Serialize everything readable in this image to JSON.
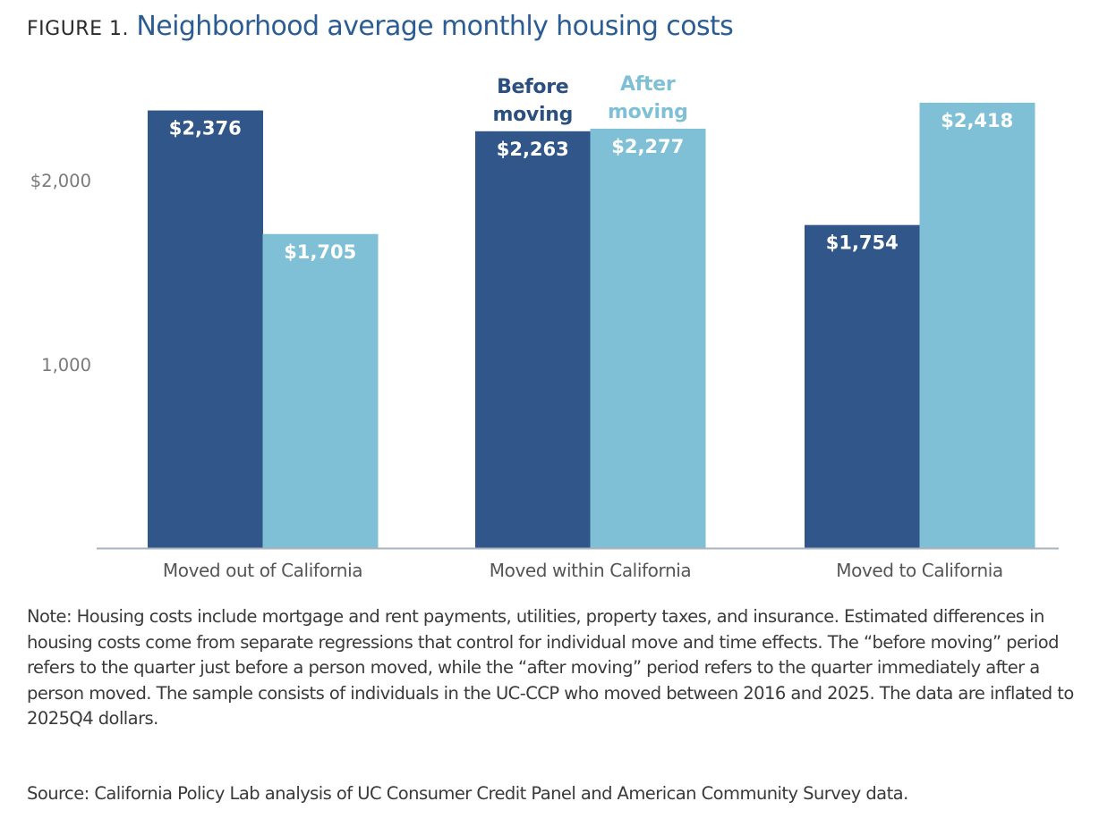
{
  "figure": {
    "label": "FIGURE 1.",
    "title": "Neighborhood average monthly housing costs"
  },
  "chart_data": {
    "type": "bar",
    "title": "Neighborhood average monthly housing costs",
    "xlabel": "",
    "ylabel": "",
    "categories": [
      "Moved out of California",
      "Moved within California",
      "Moved to California"
    ],
    "series": [
      {
        "name": "Before moving",
        "legend_label": [
          "Before",
          "moving"
        ],
        "color": "#30568a",
        "values": [
          2376,
          2263,
          1754
        ],
        "labels": [
          "$2,376",
          "$2,263",
          "$1,754"
        ]
      },
      {
        "name": "After moving",
        "legend_label": [
          "After",
          "moving"
        ],
        "color": "#7fc0d6",
        "values": [
          1705,
          2277,
          2418
        ],
        "labels": [
          "$1,705",
          "$2,277",
          "$2,418"
        ]
      }
    ],
    "yticks": [
      {
        "value": 1000,
        "label": "1,000"
      },
      {
        "value": 2000,
        "label": "$2,000"
      }
    ],
    "ylim": [
      0,
      2418
    ],
    "grid": false,
    "legend_placement": "above middle group bars"
  },
  "notes": {
    "note": "Note: Housing costs include mortgage and rent payments, utilities, property taxes, and insurance. Estimated differences in housing costs come from separate regressions that control for individual move and time effects. The “before moving” period refers to the quarter just before a person moved, while the “after moving” period refers to the quarter immediately after a person moved. The sample consists of individuals in the UC-CCP who moved between 2016 and 2025. The data are inflated to 2025Q4 dollars.",
    "source": "Source: California Policy Lab analysis of UC Consumer Credit Panel and American Community Survey data."
  }
}
